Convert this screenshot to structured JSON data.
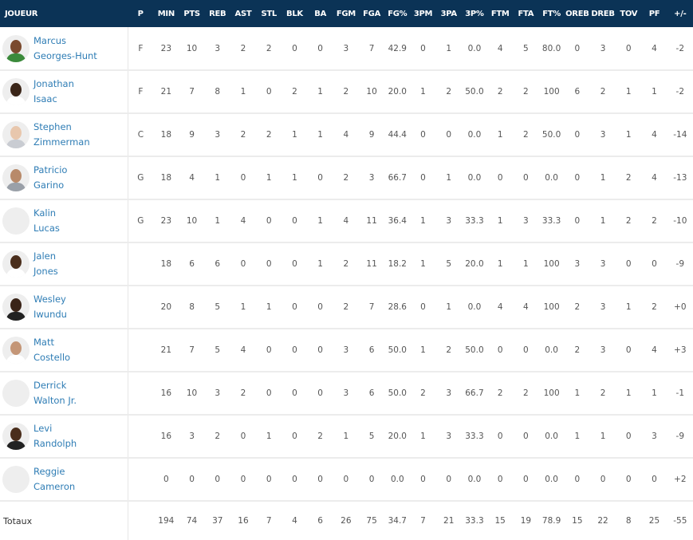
{
  "columns": [
    "JOUEUR",
    "P",
    "MIN",
    "PTS",
    "REB",
    "AST",
    "STL",
    "BLK",
    "BA",
    "FGM",
    "FGA",
    "FG%",
    "3PM",
    "3PA",
    "3P%",
    "FTM",
    "FTA",
    "FT%",
    "OREB",
    "DREB",
    "TOV",
    "PF",
    "+/-"
  ],
  "colors": {
    "header_bg": "#0b3356",
    "link": "#2f7db5"
  },
  "players": [
    {
      "first": "Marcus",
      "last": "Georges-Hunt",
      "photo": true,
      "skin": "#7a4a2e",
      "shirt": "#3b8a3b",
      "stats": [
        "F",
        "23",
        "10",
        "3",
        "2",
        "2",
        "0",
        "0",
        "3",
        "7",
        "42.9",
        "0",
        "1",
        "0.0",
        "4",
        "5",
        "80.0",
        "0",
        "3",
        "0",
        "4",
        "-2"
      ]
    },
    {
      "first": "Jonathan",
      "last": "Isaac",
      "photo": true,
      "skin": "#3a2518",
      "shirt": "#ffffff",
      "stats": [
        "F",
        "21",
        "7",
        "8",
        "1",
        "0",
        "2",
        "1",
        "2",
        "10",
        "20.0",
        "1",
        "2",
        "50.0",
        "2",
        "2",
        "100",
        "6",
        "2",
        "1",
        "1",
        "-2"
      ]
    },
    {
      "first": "Stephen",
      "last": "Zimmerman",
      "photo": true,
      "skin": "#e8c7ad",
      "shirt": "#c9ccd2",
      "stats": [
        "C",
        "18",
        "9",
        "3",
        "2",
        "2",
        "1",
        "1",
        "4",
        "9",
        "44.4",
        "0",
        "0",
        "0.0",
        "1",
        "2",
        "50.0",
        "0",
        "3",
        "1",
        "4",
        "-14"
      ]
    },
    {
      "first": "Patricio",
      "last": "Garino",
      "photo": true,
      "skin": "#b88a6a",
      "shirt": "#9aa0a8",
      "stats": [
        "G",
        "18",
        "4",
        "1",
        "0",
        "1",
        "1",
        "0",
        "2",
        "3",
        "66.7",
        "0",
        "1",
        "0.0",
        "0",
        "0",
        "0.0",
        "0",
        "1",
        "2",
        "4",
        "-13"
      ]
    },
    {
      "first": "Kalin",
      "last": "Lucas",
      "photo": false,
      "stats": [
        "G",
        "23",
        "10",
        "1",
        "4",
        "0",
        "0",
        "1",
        "4",
        "11",
        "36.4",
        "1",
        "3",
        "33.3",
        "1",
        "3",
        "33.3",
        "0",
        "1",
        "2",
        "2",
        "-10"
      ]
    },
    {
      "first": "Jalen",
      "last": "Jones",
      "photo": true,
      "skin": "#4a2e1c",
      "shirt": "#ffffff",
      "stats": [
        "",
        "18",
        "6",
        "6",
        "0",
        "0",
        "0",
        "1",
        "2",
        "11",
        "18.2",
        "1",
        "5",
        "20.0",
        "1",
        "1",
        "100",
        "3",
        "3",
        "0",
        "0",
        "-9"
      ]
    },
    {
      "first": "Wesley",
      "last": "Iwundu",
      "photo": true,
      "skin": "#3a2418",
      "shirt": "#222222",
      "stats": [
        "",
        "20",
        "8",
        "5",
        "1",
        "1",
        "0",
        "0",
        "2",
        "7",
        "28.6",
        "0",
        "1",
        "0.0",
        "4",
        "4",
        "100",
        "2",
        "3",
        "1",
        "2",
        "+0"
      ]
    },
    {
      "first": "Matt",
      "last": "Costello",
      "photo": true,
      "skin": "#c49677",
      "shirt": "#ffffff",
      "stats": [
        "",
        "21",
        "7",
        "5",
        "4",
        "0",
        "0",
        "0",
        "3",
        "6",
        "50.0",
        "1",
        "2",
        "50.0",
        "0",
        "0",
        "0.0",
        "2",
        "3",
        "0",
        "4",
        "+3"
      ]
    },
    {
      "first": "Derrick",
      "last": "Walton Jr.",
      "photo": false,
      "stats": [
        "",
        "16",
        "10",
        "3",
        "2",
        "0",
        "0",
        "0",
        "3",
        "6",
        "50.0",
        "2",
        "3",
        "66.7",
        "2",
        "2",
        "100",
        "1",
        "2",
        "1",
        "1",
        "-1"
      ]
    },
    {
      "first": "Levi",
      "last": "Randolph",
      "photo": true,
      "skin": "#4a2e1c",
      "shirt": "#222222",
      "stats": [
        "",
        "16",
        "3",
        "2",
        "0",
        "1",
        "0",
        "2",
        "1",
        "5",
        "20.0",
        "1",
        "3",
        "33.3",
        "0",
        "0",
        "0.0",
        "1",
        "1",
        "0",
        "3",
        "-9"
      ]
    },
    {
      "first": "Reggie",
      "last": "Cameron",
      "photo": false,
      "stats": [
        "",
        "0",
        "0",
        "0",
        "0",
        "0",
        "0",
        "0",
        "0",
        "0",
        "0.0",
        "0",
        "0",
        "0.0",
        "0",
        "0",
        "0.0",
        "0",
        "0",
        "0",
        "0",
        "+2"
      ]
    }
  ],
  "totals": {
    "label": "Totaux",
    "stats": [
      "",
      "194",
      "74",
      "37",
      "16",
      "7",
      "4",
      "6",
      "26",
      "75",
      "34.7",
      "7",
      "21",
      "33.3",
      "15",
      "19",
      "78.9",
      "15",
      "22",
      "8",
      "25",
      "-55"
    ]
  }
}
